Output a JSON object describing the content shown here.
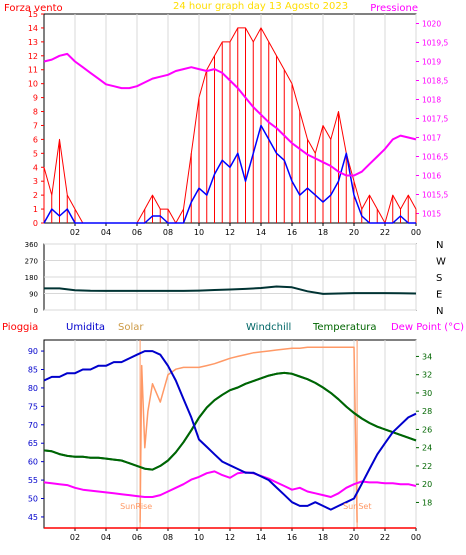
{
  "chart_data": [
    {
      "type": "line",
      "title": "24 hour graph day    13 Agosto 2023",
      "left_label": "Forza vento",
      "right_label": "Pressione",
      "x_ticks": [
        "02",
        "04",
        "06",
        "08",
        "10",
        "12",
        "14",
        "16",
        "18",
        "20",
        "22",
        "00"
      ],
      "xlim": [
        0,
        24
      ],
      "left_ylim": [
        0,
        15
      ],
      "left_ticks": [
        "0",
        "1",
        "2",
        "3",
        "4",
        "5",
        "6",
        "7",
        "8",
        "9",
        "10",
        "11",
        "12",
        "13",
        "14",
        "15"
      ],
      "right_ylim": [
        1014.75,
        1020.25
      ],
      "right_ticks": [
        "1015",
        "1015,5",
        "1016",
        "1016,5",
        "1017",
        "1017,5",
        "1018",
        "1018,5",
        "1019",
        "1019,5",
        "1020"
      ],
      "series": [
        {
          "name": "Forza vento",
          "color": "#ff0000",
          "axis": "left",
          "style": "gust",
          "x": [
            0,
            0.5,
            1,
            1.5,
            2,
            2.5,
            3,
            3.5,
            4,
            4.5,
            5,
            5.5,
            6,
            6.5,
            7,
            7.5,
            8,
            8.5,
            9,
            9.5,
            10,
            10.5,
            11,
            11.5,
            12,
            12.5,
            13,
            13.5,
            14,
            14.5,
            15,
            15.5,
            16,
            16.5,
            17,
            17.5,
            18,
            18.5,
            19,
            19.5,
            20,
            20.5,
            21,
            21.5,
            22,
            22.5,
            23,
            23.5,
            24
          ],
          "values": [
            4,
            2,
            6,
            2,
            1,
            0,
            0,
            0,
            0,
            0,
            0,
            0,
            0,
            1,
            2,
            1,
            1,
            0,
            1,
            5,
            9,
            11,
            12,
            13,
            13,
            14,
            14,
            13,
            14,
            13,
            12,
            11,
            10,
            8,
            6,
            5,
            7,
            6,
            8,
            5,
            3,
            1,
            2,
            1,
            0,
            2,
            1,
            2,
            1
          ]
        },
        {
          "name": "Vento medio",
          "color": "#0000ff",
          "axis": "left",
          "style": "line",
          "x": [
            0,
            0.5,
            1,
            1.5,
            2,
            2.5,
            3,
            3.5,
            4,
            4.5,
            5,
            5.5,
            6,
            6.5,
            7,
            7.5,
            8,
            8.5,
            9,
            9.5,
            10,
            10.5,
            11,
            11.5,
            12,
            12.5,
            13,
            13.5,
            14,
            14.5,
            15,
            15.5,
            16,
            16.5,
            17,
            17.5,
            18,
            18.5,
            19,
            19.5,
            20,
            20.5,
            21,
            21.5,
            22,
            22.5,
            23,
            23.5,
            24
          ],
          "values": [
            0,
            1,
            0.5,
            1,
            0,
            0,
            0,
            0,
            0,
            0,
            0,
            0,
            0,
            0,
            0.5,
            0.5,
            0,
            0,
            0,
            1.5,
            2.5,
            2,
            3.5,
            4.5,
            4,
            5,
            3,
            5,
            7,
            6,
            5,
            4.5,
            3,
            2,
            2.5,
            2,
            1.5,
            2,
            3,
            5,
            2,
            0.5,
            0,
            0,
            0,
            0,
            0.5,
            0,
            0
          ]
        },
        {
          "name": "Pressione",
          "color": "#ff00ff",
          "axis": "right",
          "style": "line",
          "x": [
            0,
            0.5,
            1,
            1.5,
            2,
            2.5,
            3,
            3.5,
            4,
            4.5,
            5,
            5.5,
            6,
            6.5,
            7,
            7.5,
            8,
            8.5,
            9,
            9.5,
            10,
            10.5,
            11,
            11.5,
            12,
            12.5,
            13,
            13.5,
            14,
            14.5,
            15,
            15.5,
            16,
            16.5,
            17,
            17.5,
            18,
            18.5,
            19,
            19.5,
            20,
            20.5,
            21,
            21.5,
            22,
            22.5,
            23,
            23.5,
            24
          ],
          "values": [
            1019,
            1019.05,
            1019.15,
            1019.2,
            1019,
            1018.85,
            1018.7,
            1018.55,
            1018.4,
            1018.35,
            1018.3,
            1018.3,
            1018.35,
            1018.45,
            1018.55,
            1018.6,
            1018.65,
            1018.75,
            1018.8,
            1018.85,
            1018.8,
            1018.75,
            1018.8,
            1018.7,
            1018.5,
            1018.3,
            1018.05,
            1017.8,
            1017.6,
            1017.4,
            1017.25,
            1017.05,
            1016.85,
            1016.7,
            1016.55,
            1016.45,
            1016.35,
            1016.25,
            1016.1,
            1016,
            1016,
            1016.1,
            1016.3,
            1016.5,
            1016.7,
            1016.95,
            1017.05,
            1017,
            1016.95
          ]
        }
      ]
    },
    {
      "type": "line",
      "xlim": [
        0,
        24
      ],
      "ylim": [
        0,
        360
      ],
      "y_ticks": [
        "0",
        "90",
        "180",
        "270",
        "360"
      ],
      "right_labels": [
        "N",
        "W",
        "S",
        "E",
        "N"
      ],
      "series": [
        {
          "name": "Direzione vento",
          "color": "#003333",
          "x": [
            0,
            1,
            2,
            3,
            4,
            5,
            6,
            7,
            8,
            9,
            10,
            11,
            12,
            13,
            14,
            15,
            16,
            17,
            18,
            19,
            20,
            21,
            22,
            23,
            24
          ],
          "values": [
            118,
            118,
            108,
            105,
            104,
            104,
            104,
            104,
            104,
            104,
            106,
            109,
            112,
            115,
            120,
            128,
            124,
            102,
            88,
            90,
            92,
            92,
            92,
            91,
            90
          ]
        }
      ]
    },
    {
      "type": "line",
      "labels": {
        "rain": "Pioggia",
        "humidity": "Umidita",
        "solar": "Solar",
        "windchill": "Windchill",
        "temperature": "Temperatura",
        "dewpoint": "Dew Point (°C)"
      },
      "x_ticks": [
        "02",
        "04",
        "06",
        "08",
        "10",
        "12",
        "14",
        "16",
        "18",
        "20",
        "22",
        "00"
      ],
      "xlim": [
        0,
        24
      ],
      "left_ylim": [
        42,
        93
      ],
      "left_ticks": [
        "45",
        "50",
        "55",
        "60",
        "65",
        "70",
        "75",
        "80",
        "85",
        "90"
      ],
      "right_ylim": [
        15.2,
        35.8
      ],
      "right_ticks": [
        "18",
        "20",
        "22",
        "24",
        "26",
        "28",
        "30",
        "32",
        "34"
      ],
      "sunrise_label": "SunRise",
      "sunset_label": "SunSet",
      "sunrise_hour": 6.2,
      "sunset_hour": 20.2,
      "series": [
        {
          "name": "Umidita",
          "color": "#0000cc",
          "axis": "left",
          "x": [
            0,
            0.5,
            1,
            1.5,
            2,
            2.5,
            3,
            3.5,
            4,
            4.5,
            5,
            5.5,
            6,
            6.5,
            7,
            7.5,
            8,
            8.5,
            9,
            9.5,
            10,
            10.5,
            11,
            11.5,
            12,
            12.5,
            13,
            13.5,
            14,
            14.5,
            15,
            15.5,
            16,
            16.5,
            17,
            17.5,
            18,
            18.5,
            19,
            19.5,
            20,
            20.5,
            21,
            21.5,
            22,
            22.5,
            23,
            23.5,
            24
          ],
          "values": [
            82,
            83,
            83,
            84,
            84,
            85,
            85,
            86,
            86,
            87,
            87,
            88,
            89,
            90,
            90,
            89,
            86,
            82,
            77,
            72,
            66,
            64,
            62,
            60,
            59,
            58,
            57,
            57,
            56,
            55,
            53,
            51,
            49,
            48,
            48,
            49,
            48,
            47,
            48,
            49,
            50,
            54,
            58,
            62,
            65,
            68,
            70,
            72,
            73
          ]
        },
        {
          "name": "Solar",
          "color": "#ff9966",
          "axis": "right",
          "style": "solar",
          "x": [
            6.2,
            6.3,
            6.5,
            6.7,
            7,
            7.5,
            8,
            8.5,
            9,
            9.5,
            10,
            10.5,
            11,
            11.5,
            12,
            12.5,
            13,
            13.5,
            14,
            14.5,
            15,
            15.5,
            16,
            16.5,
            17,
            17.5,
            18,
            18.5,
            19,
            19.5,
            20,
            20.2
          ],
          "values": [
            15.8,
            33,
            24,
            28,
            31,
            29,
            32,
            32.6,
            32.8,
            32.8,
            32.8,
            33,
            33.2,
            33.5,
            33.8,
            34,
            34.2,
            34.4,
            34.5,
            34.6,
            34.7,
            34.8,
            34.9,
            34.9,
            35,
            35,
            35,
            35,
            35,
            35,
            35,
            15.8
          ]
        },
        {
          "name": "Windchill",
          "color": "#006666",
          "axis": "right",
          "x": [
            0,
            0.5,
            1,
            1.5,
            2,
            2.5,
            3,
            3.5,
            4,
            4.5,
            5,
            5.5,
            6,
            6.5,
            7,
            7.5,
            8,
            8.5,
            9,
            9.5,
            10,
            10.5,
            11,
            11.5,
            12,
            12.5,
            13,
            13.5,
            14,
            14.5,
            15,
            15.5,
            16,
            16.5,
            17,
            17.5,
            18,
            18.5,
            19,
            19.5,
            20,
            20.5,
            21,
            21.5,
            22,
            22.5,
            23,
            23.5,
            24
          ],
          "values": [
            23.7,
            23.6,
            23.3,
            23.1,
            23,
            23,
            22.9,
            22.9,
            22.8,
            22.7,
            22.6,
            22.3,
            22,
            21.7,
            21.6,
            22,
            22.6,
            23.5,
            24.6,
            25.9,
            27.3,
            28.4,
            29.2,
            29.8,
            30.3,
            30.6,
            31,
            31.3,
            31.6,
            31.9,
            32.1,
            32.2,
            32.1,
            31.8,
            31.5,
            31.1,
            30.6,
            30,
            29.3,
            28.5,
            27.8,
            27.2,
            26.7,
            26.3,
            26,
            25.7,
            25.4,
            25.1,
            24.8
          ]
        },
        {
          "name": "Temperatura",
          "color": "#006600",
          "axis": "right",
          "x": [
            0,
            0.5,
            1,
            1.5,
            2,
            2.5,
            3,
            3.5,
            4,
            4.5,
            5,
            5.5,
            6,
            6.5,
            7,
            7.5,
            8,
            8.5,
            9,
            9.5,
            10,
            10.5,
            11,
            11.5,
            12,
            12.5,
            13,
            13.5,
            14,
            14.5,
            15,
            15.5,
            16,
            16.5,
            17,
            17.5,
            18,
            18.5,
            19,
            19.5,
            20,
            20.5,
            21,
            21.5,
            22,
            22.5,
            23,
            23.5,
            24
          ],
          "values": [
            23.7,
            23.6,
            23.3,
            23.1,
            23,
            23,
            22.9,
            22.9,
            22.8,
            22.7,
            22.6,
            22.3,
            22,
            21.7,
            21.6,
            22,
            22.6,
            23.5,
            24.6,
            25.9,
            27.3,
            28.4,
            29.2,
            29.8,
            30.3,
            30.6,
            31,
            31.3,
            31.6,
            31.9,
            32.1,
            32.2,
            32.1,
            31.8,
            31.5,
            31.1,
            30.6,
            30,
            29.3,
            28.5,
            27.8,
            27.2,
            26.7,
            26.3,
            26,
            25.7,
            25.4,
            25.1,
            24.8
          ]
        },
        {
          "name": "Dew Point",
          "color": "#ff00ff",
          "axis": "right",
          "x": [
            0,
            0.5,
            1,
            1.5,
            2,
            2.5,
            3,
            3.5,
            4,
            4.5,
            5,
            5.5,
            6,
            6.5,
            7,
            7.5,
            8,
            8.5,
            9,
            9.5,
            10,
            10.5,
            11,
            11.5,
            12,
            12.5,
            13,
            13.5,
            14,
            14.5,
            15,
            15.5,
            16,
            16.5,
            17,
            17.5,
            18,
            18.5,
            19,
            19.5,
            20,
            20.5,
            21,
            21.5,
            22,
            22.5,
            23,
            23.5,
            24
          ],
          "values": [
            20.2,
            20.1,
            20,
            19.9,
            19.6,
            19.4,
            19.3,
            19.2,
            19.1,
            19,
            18.9,
            18.8,
            18.7,
            18.6,
            18.6,
            18.8,
            19.2,
            19.6,
            20,
            20.5,
            20.8,
            21.2,
            21.4,
            21,
            20.7,
            21.2,
            21.3,
            21.2,
            20.9,
            20.6,
            20.2,
            19.8,
            19.4,
            19.6,
            19.2,
            19,
            18.8,
            18.6,
            19,
            19.6,
            20,
            20.3,
            20.2,
            20.2,
            20.1,
            20.1,
            20,
            20,
            19.8
          ]
        }
      ]
    }
  ]
}
